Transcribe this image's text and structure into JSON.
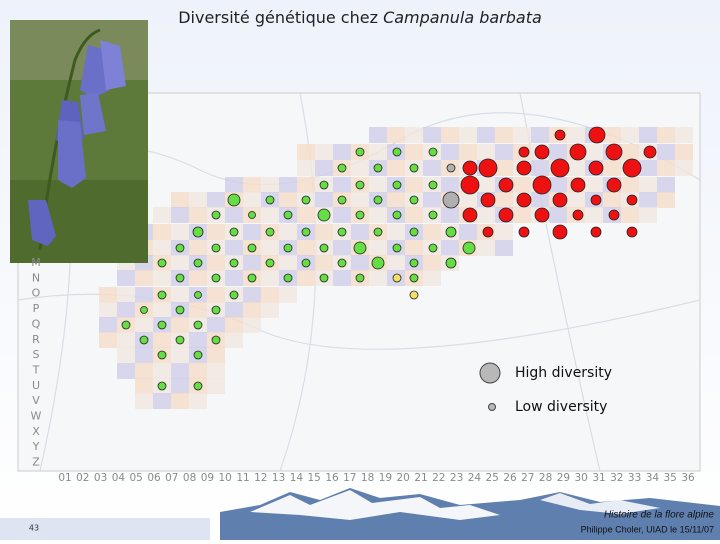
{
  "title": {
    "text": "Diversité génétique chez",
    "species": "Campanula barbata"
  },
  "map": {
    "row_labels": [
      "M",
      "N",
      "O",
      "P",
      "Q",
      "R",
      "S",
      "T",
      "U",
      "V",
      "W",
      "X",
      "Y",
      "Z"
    ],
    "column_labels": [
      "01",
      "02",
      "03",
      "04",
      "05",
      "06",
      "07",
      "08",
      "09",
      "10",
      "11",
      "12",
      "13",
      "14",
      "15",
      "16",
      "17",
      "18",
      "19",
      "20",
      "21",
      "22",
      "23",
      "24",
      "25",
      "26",
      "27",
      "28",
      "29",
      "30",
      "31",
      "32",
      "33",
      "34",
      "35",
      "36"
    ],
    "legend": {
      "high": "High diversity",
      "low": "Low diversity"
    }
  },
  "footer": {
    "page": "43",
    "line1": "Histoire de la flore alpine",
    "line2": "Philippe Choler, UIAD le 15/11/07"
  }
}
